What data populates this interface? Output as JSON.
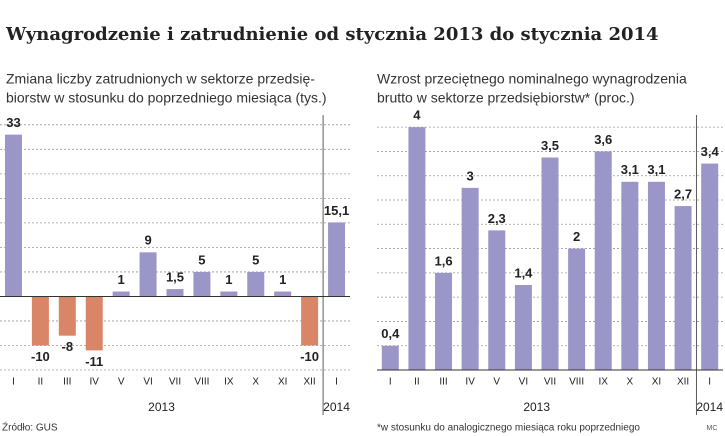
{
  "title": "Wynagrodzenie i zatrudnienie od stycznia 2013 do stycznia 2014",
  "credit": "MC",
  "chart_data": [
    {
      "type": "bar",
      "subtitle": [
        "Zmiana liczby zatrudnionych w sektorze przedsię-",
        "biorstw w stosunku do poprzedniego miesiąca (tys.)"
      ],
      "categories": [
        "I",
        "II",
        "III",
        "IV",
        "V",
        "VI",
        "VII",
        "VIII",
        "IX",
        "X",
        "XI",
        "XII",
        "I"
      ],
      "values": [
        33,
        -10,
        -8,
        -11,
        1,
        9,
        1.5,
        5,
        1,
        5,
        1,
        -10,
        15.1
      ],
      "value_labels": [
        "33",
        "-10",
        "-8",
        "-11",
        "1",
        "9",
        "1,5",
        "5",
        "1",
        "5",
        "1",
        "-10",
        "15,1"
      ],
      "groups": [
        {
          "label": "2013",
          "span": 12
        },
        {
          "label": "2014",
          "span": 1
        }
      ],
      "color": "#9b96c8",
      "negative_color": "#d98568",
      "ylim": [
        -15,
        37
      ],
      "yticks": [
        -15,
        -10,
        -5,
        0,
        5,
        10,
        15,
        20,
        25,
        30,
        35
      ],
      "grid": true,
      "source": "Źródło: GUS"
    },
    {
      "type": "bar",
      "subtitle": [
        "Wzrost przeciętnego nominalnego wynagrodzenia",
        "brutto w sektorze przedsiębiorstw* (proc.)"
      ],
      "categories": [
        "I",
        "II",
        "III",
        "IV",
        "V",
        "VI",
        "VII",
        "VIII",
        "IX",
        "X",
        "XI",
        "XII",
        "I"
      ],
      "values": [
        0.4,
        4,
        1.6,
        3,
        2.3,
        1.4,
        3.5,
        2,
        3.6,
        3.1,
        3.1,
        2.7,
        3.4
      ],
      "value_labels": [
        "0,4",
        "4",
        "1,6",
        "3",
        "2,3",
        "1,4",
        "3,5",
        "2",
        "3,6",
        "3,1",
        "3,1",
        "2,7",
        "3,4"
      ],
      "groups": [
        {
          "label": "2013",
          "span": 12
        },
        {
          "label": "2014",
          "span": 1
        }
      ],
      "color": "#9b96c8",
      "negative_color": "#d98568",
      "ylim": [
        0,
        4.2
      ],
      "yticks": [
        0,
        0.4,
        0.8,
        1.2,
        1.6,
        2,
        2.4,
        2.8,
        3.2,
        3.6,
        4
      ],
      "grid": true,
      "note": "*w stosunku do analogicznego miesiąca roku poprzedniego"
    }
  ]
}
